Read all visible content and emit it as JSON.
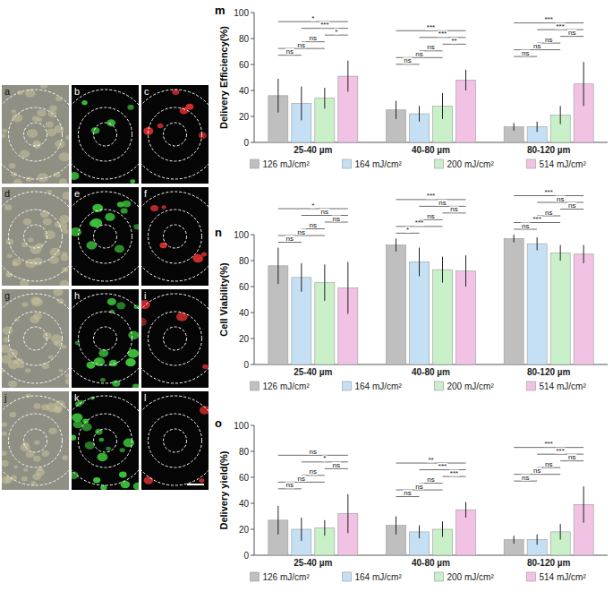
{
  "image_panels": {
    "labels": [
      "a",
      "b",
      "c",
      "d",
      "e",
      "f",
      "g",
      "h",
      "i",
      "j",
      "k",
      "l"
    ]
  },
  "chart_data": [
    {
      "type": "bar",
      "panel": "m",
      "y_label": "Delivery Efficiency(%)",
      "categories": [
        "25-40 µm",
        "40-80 µm",
        "80-120 µm"
      ],
      "series": [
        {
          "name": "126 mJ/cm²",
          "color": "#bfbfbf",
          "values": [
            36,
            25,
            12
          ],
          "errors": [
            13,
            7,
            3
          ]
        },
        {
          "name": "164 mJ/cm²",
          "color": "#c5e0f5",
          "values": [
            30,
            22,
            12
          ],
          "errors": [
            13,
            6,
            4
          ]
        },
        {
          "name": "200 mJ/cm²",
          "color": "#c9f0c9",
          "values": [
            34,
            28,
            21
          ],
          "errors": [
            8,
            10,
            7
          ]
        },
        {
          "name": "514 mJ/cm²",
          "color": "#f2c2e4",
          "values": [
            51,
            48,
            45
          ],
          "errors": [
            12,
            8,
            17
          ]
        }
      ],
      "comparisons": [
        [
          0,
          3
        ],
        [
          1,
          3
        ],
        [
          2,
          3
        ],
        [
          1,
          2
        ],
        [
          0,
          2
        ],
        [
          0,
          1
        ]
      ],
      "significance": [
        [
          "*",
          "***",
          "*",
          "ns",
          "ns",
          "ns"
        ],
        [
          "***",
          "***",
          "**",
          "ns",
          "ns",
          "ns"
        ],
        [
          "***",
          "***",
          "ns",
          "ns",
          "ns",
          "ns"
        ]
      ],
      "ylim": [
        0,
        100
      ],
      "yticks": [
        0,
        20,
        40,
        60,
        80,
        100
      ],
      "grid": false,
      "legend": "bottom"
    },
    {
      "type": "bar",
      "panel": "n",
      "y_label": "Cell Viability(%)",
      "categories": [
        "25-40 µm",
        "40-80 µm",
        "80-120 µm"
      ],
      "series": [
        {
          "name": "126 mJ/cm²",
          "color": "#bfbfbf",
          "values": [
            76,
            92,
            97
          ],
          "errors": [
            14,
            5,
            3
          ]
        },
        {
          "name": "164 mJ/cm²",
          "color": "#c5e0f5",
          "values": [
            67,
            79,
            93
          ],
          "errors": [
            11,
            11,
            5
          ]
        },
        {
          "name": "200 mJ/cm²",
          "color": "#c9f0c9",
          "values": [
            63,
            73,
            86
          ],
          "errors": [
            14,
            10,
            6
          ]
        },
        {
          "name": "514 mJ/cm²",
          "color": "#f2c2e4",
          "values": [
            59,
            72,
            85
          ],
          "errors": [
            20,
            12,
            7
          ]
        }
      ],
      "comparisons": [
        [
          0,
          3
        ],
        [
          1,
          3
        ],
        [
          2,
          3
        ],
        [
          1,
          2
        ],
        [
          0,
          2
        ],
        [
          0,
          1
        ]
      ],
      "significance": [
        [
          "*",
          "ns",
          "ns",
          "ns",
          "ns",
          "ns"
        ],
        [
          "***",
          "ns",
          "ns",
          "ns",
          "***",
          "*"
        ],
        [
          "***",
          "ns",
          "ns",
          "ns",
          "***",
          "ns"
        ]
      ],
      "ylim": [
        0,
        100
      ],
      "yticks": [
        0,
        20,
        40,
        60,
        80,
        100
      ],
      "grid": false,
      "legend": "bottom"
    },
    {
      "type": "bar",
      "panel": "o",
      "y_label": "Delivery yield(%)",
      "categories": [
        "25-40 µm",
        "40-80 µm",
        "80-120 µm"
      ],
      "series": [
        {
          "name": "126 mJ/cm²",
          "color": "#bfbfbf",
          "values": [
            27,
            23,
            12
          ],
          "errors": [
            11,
            7,
            3
          ]
        },
        {
          "name": "164 mJ/cm²",
          "color": "#c5e0f5",
          "values": [
            20,
            18,
            12
          ],
          "errors": [
            9,
            5,
            4
          ]
        },
        {
          "name": "200 mJ/cm²",
          "color": "#c9f0c9",
          "values": [
            21,
            20,
            18
          ],
          "errors": [
            6,
            6,
            6
          ]
        },
        {
          "name": "514 mJ/cm²",
          "color": "#f2c2e4",
          "values": [
            32,
            35,
            39
          ],
          "errors": [
            15,
            6,
            14
          ]
        }
      ],
      "comparisons": [
        [
          0,
          3
        ],
        [
          1,
          3
        ],
        [
          2,
          3
        ],
        [
          1,
          2
        ],
        [
          0,
          2
        ],
        [
          0,
          1
        ]
      ],
      "significance": [
        [
          "ns",
          "*",
          "ns",
          "ns",
          "ns",
          "ns"
        ],
        [
          "**",
          "***",
          "***",
          "ns",
          "ns",
          "ns"
        ],
        [
          "***",
          "***",
          "ns",
          "ns",
          "ns",
          "ns"
        ]
      ],
      "ylim": [
        0,
        100
      ],
      "yticks": [
        0,
        20,
        40,
        60,
        80,
        100
      ],
      "grid": false,
      "legend": "bottom"
    }
  ]
}
